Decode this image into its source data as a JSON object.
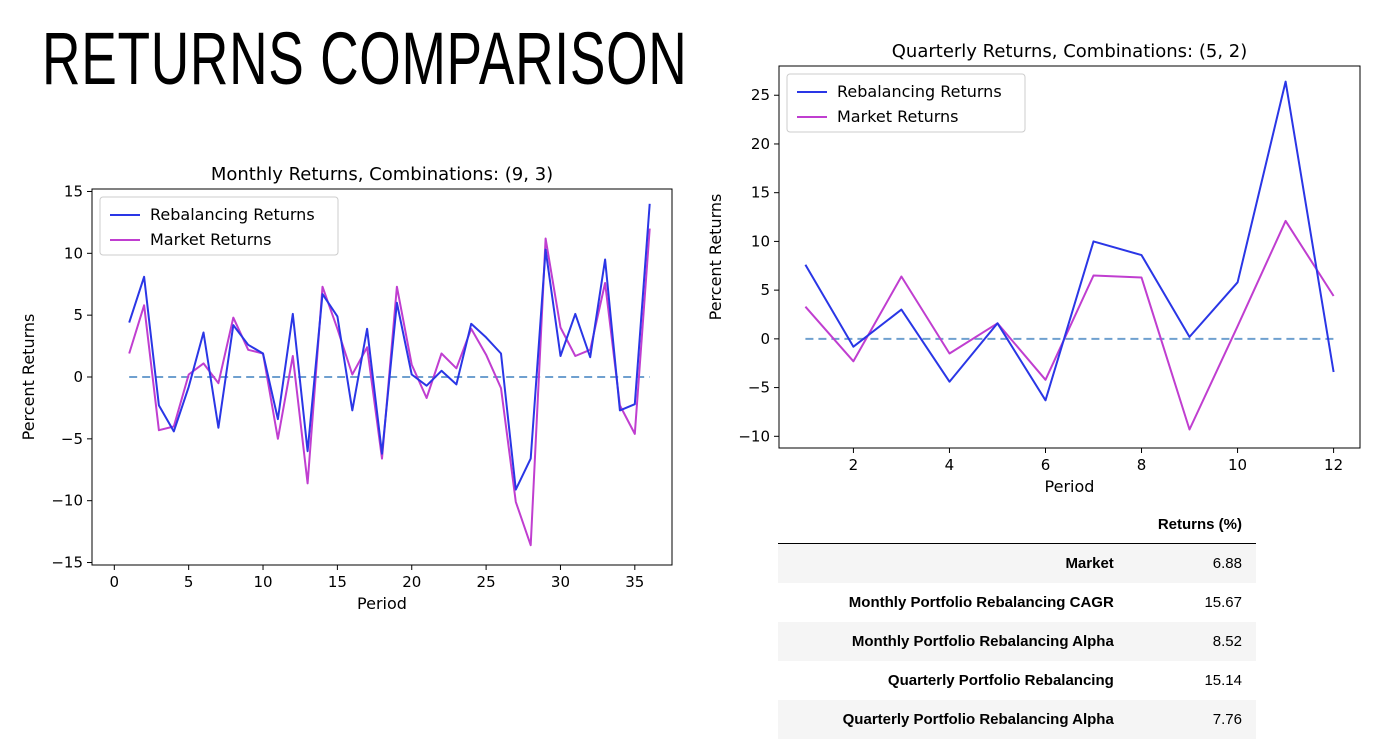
{
  "page": {
    "title": "RETURNS COMPARISON"
  },
  "chart_data": [
    {
      "type": "line",
      "title": "Monthly Returns, Combinations: (9, 3)",
      "xlabel": "Period",
      "ylabel": "Percent Returns",
      "xlim": [
        -1.5,
        37.5
      ],
      "ylim": [
        -15.2,
        15.2
      ],
      "xticks": [
        0,
        5,
        10,
        15,
        20,
        25,
        30,
        35
      ],
      "yticks": [
        -15,
        -10,
        -5,
        0,
        5,
        10,
        15
      ],
      "x": [
        1,
        2,
        3,
        4,
        5,
        6,
        7,
        8,
        9,
        10,
        11,
        12,
        13,
        14,
        15,
        16,
        17,
        18,
        19,
        20,
        21,
        22,
        23,
        24,
        25,
        26,
        27,
        28,
        29,
        30,
        31,
        32,
        33,
        34,
        35,
        36
      ],
      "series": [
        {
          "name": "Rebalancing Returns",
          "color": "#2a36e6",
          "values": [
            4.4,
            8.1,
            -2.3,
            -4.4,
            -0.8,
            3.6,
            -4.1,
            4.2,
            2.6,
            1.9,
            -3.4,
            5.1,
            -6.0,
            6.7,
            4.9,
            -2.7,
            3.9,
            -6.2,
            6.0,
            0.2,
            -0.7,
            0.5,
            -0.6,
            4.3,
            3.2,
            1.9,
            -9.1,
            -6.6,
            10.3,
            1.7,
            5.1,
            1.6,
            9.5,
            -2.7,
            -2.2,
            14.0
          ]
        },
        {
          "name": "Market Returns",
          "color": "#c03ed0",
          "values": [
            1.9,
            5.8,
            -4.3,
            -4.0,
            0.2,
            1.1,
            -0.5,
            4.8,
            2.2,
            1.9,
            -5.0,
            1.7,
            -8.6,
            7.3,
            3.9,
            0.2,
            2.4,
            -6.6,
            7.3,
            1.0,
            -1.7,
            1.9,
            0.7,
            3.9,
            1.8,
            -0.9,
            -10.1,
            -13.6,
            11.2,
            4.0,
            1.7,
            2.2,
            7.6,
            -2.3,
            -4.6,
            12.0
          ]
        }
      ],
      "baseline": {
        "value": 0,
        "color": "#6fa0cf",
        "style": "dashed"
      },
      "legend": "upper-left"
    },
    {
      "type": "line",
      "title": "Quarterly Returns, Combinations: (5, 2)",
      "xlabel": "Period",
      "ylabel": "Percent Returns",
      "xlim": [
        0.45,
        12.55
      ],
      "ylim": [
        -11.2,
        28
      ],
      "xticks": [
        2,
        4,
        6,
        8,
        10,
        12
      ],
      "yticks": [
        -10,
        -5,
        0,
        5,
        10,
        15,
        20,
        25
      ],
      "x": [
        1,
        2,
        3,
        4,
        5,
        6,
        7,
        8,
        9,
        10,
        11,
        12
      ],
      "series": [
        {
          "name": "Rebalancing Returns",
          "color": "#2a36e6",
          "values": [
            7.6,
            -0.8,
            3.0,
            -4.4,
            1.6,
            -6.3,
            10.0,
            8.6,
            0.2,
            5.8,
            26.4,
            -3.4
          ]
        },
        {
          "name": "Market Returns",
          "color": "#c03ed0",
          "values": [
            3.3,
            -2.3,
            6.4,
            -1.5,
            1.6,
            -4.2,
            6.5,
            6.3,
            -9.3,
            1.3,
            12.1,
            4.4
          ]
        }
      ],
      "baseline": {
        "value": 0,
        "color": "#6fa0cf",
        "style": "dashed"
      },
      "legend": "upper-left"
    }
  ],
  "stats_table": {
    "column_header": "Returns (%)",
    "rows": [
      {
        "label": "Market",
        "value": "6.88"
      },
      {
        "label": "Monthly Portfolio Rebalancing CAGR",
        "value": "15.67"
      },
      {
        "label": "Monthly Portfolio Rebalancing Alpha",
        "value": "8.52"
      },
      {
        "label": "Quarterly Portfolio Rebalancing",
        "value": "15.14"
      },
      {
        "label": "Quarterly Portfolio Rebalancing Alpha",
        "value": "7.76"
      }
    ]
  }
}
